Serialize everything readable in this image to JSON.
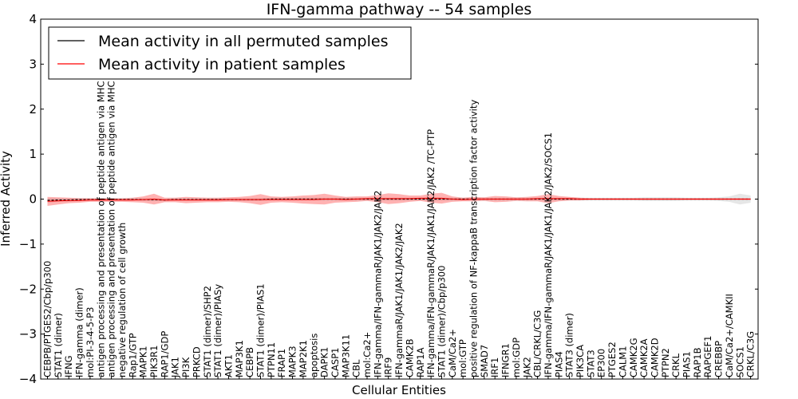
{
  "chart_data": {
    "type": "line",
    "title": "IFN-gamma pathway -- 54 samples",
    "xlabel": "Cellular Entities",
    "ylabel": "Inferred Activity",
    "ylim": [
      -4,
      4
    ],
    "yticks": [
      -4,
      -3,
      -2,
      -1,
      0,
      1,
      2,
      3,
      4
    ],
    "ytick_labels": [
      "−4",
      "−3",
      "−2",
      "−1",
      "0",
      "1",
      "2",
      "3",
      "4"
    ],
    "legend_position": "top-left",
    "categories": [
      "CEBPB/PTGES2/Cbp/p300",
      "STAT1 (dimer)",
      "IFNG",
      "IFN-gamma (dimer)",
      "mol:PI-3-4-5-P3",
      "antigen processing and presentation of peptide antigen via MHC class I",
      "antigen processing and presentation of peptide antigen via MHC class II",
      "negative regulation of cell growth",
      "Rap1/GTP",
      "MAPK1",
      "PIK3R1",
      "RAP1/GDP",
      "JAK1",
      "PI3K",
      "PRKCD",
      "STAT1 (dimer)/SHP2",
      "STAT1 (dimer)/PIASy",
      "AKT1",
      "MAP3K1",
      "CEBPB",
      "STAT1 (dimer)/PIAS1",
      "PTPN11",
      "FRAP1",
      "MAPK3",
      "MAP2K1",
      "apoptosis",
      "DAPK1",
      "CASP1",
      "MAP3K11",
      "CBL",
      "mol:Ca2+",
      "IFN-gamma/IFN-gammaR/JAK1/JAK2/JAK2",
      "IRF9",
      "IFN-gammaR/JAK1/JAK1/JAK2/JAK2",
      "CAMK2B",
      "RAP1A",
      "IFN-gamma/IFN-gammaR/JAK1/JAK1/JAK2/JAK2  /TC-PTP",
      "STAT1 (dimer)/Cbp/p300",
      "CaM/Ca2+",
      "mol:GTP",
      "positive regulation of NF-kappaB transcription factor activity",
      "SMAD7",
      "IRF1",
      "IFNGR1",
      "mol:GDP",
      "JAK2",
      "CBL/CRKL/C3G",
      "IFN-gamma/IFN-gammaR/JAK1/JAK1/JAK2/JAK2/SOCS1",
      "PIAS4",
      "STAT3 (dimer)",
      "PIK3CA",
      "STAT3",
      "EP300",
      "PTGES2",
      "CALM1",
      "CAMK2G",
      "CAMK2A",
      "CAMK2D",
      "PTPN2",
      "CRKL",
      "PIAS1",
      "RAP1B",
      "RAPGEF1",
      "CREBBP",
      "CaM/Ca2+/CAMKII",
      "SOCS1",
      "CRKL/C3G"
    ],
    "series": [
      {
        "name": "Mean activity in all permuted samples",
        "color": "#000000",
        "values": [
          -0.03,
          -0.02,
          -0.02,
          -0.01,
          -0.01,
          -0.01,
          -0.01,
          -0.01,
          -0.01,
          -0.01,
          -0.01,
          -0.02,
          -0.01,
          -0.01,
          -0.01,
          -0.01,
          -0.01,
          -0.01,
          -0.01,
          -0.01,
          -0.01,
          0,
          0,
          0,
          0,
          0,
          0,
          0,
          0,
          0,
          0,
          0,
          0,
          0,
          0,
          0,
          0,
          0,
          0,
          0,
          0,
          0,
          0,
          0,
          0,
          0,
          0,
          0,
          0,
          0,
          0,
          0,
          0,
          0,
          0,
          0,
          0,
          0,
          0,
          0,
          0,
          0,
          0,
          0,
          0,
          0,
          0
        ],
        "band": [
          0.05,
          0.04,
          0.04,
          0.03,
          0.03,
          0.03,
          0.03,
          0.03,
          0.03,
          0.03,
          0.03,
          0.03,
          0.03,
          0.03,
          0.03,
          0.03,
          0.03,
          0.03,
          0.03,
          0.03,
          0.03,
          0.03,
          0.03,
          0.03,
          0.03,
          0.03,
          0.03,
          0.03,
          0.03,
          0.03,
          0.03,
          0.03,
          0.03,
          0.03,
          0.03,
          0.03,
          0.03,
          0.03,
          0.03,
          0.03,
          0.03,
          0.03,
          0.03,
          0.03,
          0.03,
          0.03,
          0.03,
          0.03,
          0.03,
          0.03,
          0.03,
          0.03,
          0.03,
          0.03,
          0.03,
          0.03,
          0.04,
          0.04,
          0.04,
          0.04,
          0.03,
          0.03,
          0.03,
          0.04,
          0.06,
          0.12,
          0.08
        ]
      },
      {
        "name": "Mean activity in patient samples",
        "color": "#ff0000",
        "values": [
          -0.05,
          -0.04,
          -0.03,
          -0.03,
          -0.02,
          -0.02,
          -0.02,
          -0.02,
          -0.02,
          -0.01,
          0,
          -0.02,
          -0.02,
          -0.02,
          -0.02,
          -0.02,
          -0.02,
          -0.01,
          -0.01,
          -0.01,
          -0.01,
          -0.01,
          -0.01,
          -0.01,
          -0.01,
          -0.01,
          0,
          0,
          -0.01,
          0,
          0.01,
          0.01,
          0.01,
          0.01,
          0.01,
          0.02,
          0.02,
          0.02,
          0,
          -0.01,
          0,
          0,
          0,
          0,
          0,
          0,
          0.01,
          0.01,
          0.01,
          0.01,
          0,
          0,
          0,
          0,
          0,
          0,
          0,
          0,
          0,
          0,
          0,
          0,
          0,
          0,
          0,
          0,
          0
        ],
        "band": [
          0.1,
          0.08,
          0.06,
          0.05,
          0.04,
          0.04,
          0.04,
          0.04,
          0.05,
          0.07,
          0.12,
          0.05,
          0.05,
          0.07,
          0.06,
          0.05,
          0.05,
          0.05,
          0.06,
          0.08,
          0.12,
          0.07,
          0.06,
          0.07,
          0.09,
          0.1,
          0.12,
          0.08,
          0.06,
          0.06,
          0.05,
          0.08,
          0.12,
          0.1,
          0.07,
          0.06,
          0.1,
          0.12,
          0.06,
          0.04,
          0.05,
          0.04,
          0.07,
          0.06,
          0.04,
          0.05,
          0.06,
          0.1,
          0.06,
          0.04,
          0.03,
          0.02,
          0.02,
          0.02,
          0.02,
          0.02,
          0.02,
          0.02,
          0.02,
          0.02,
          0.02,
          0.02,
          0.02,
          0.02,
          0.02,
          0.02,
          0.02
        ]
      }
    ]
  }
}
